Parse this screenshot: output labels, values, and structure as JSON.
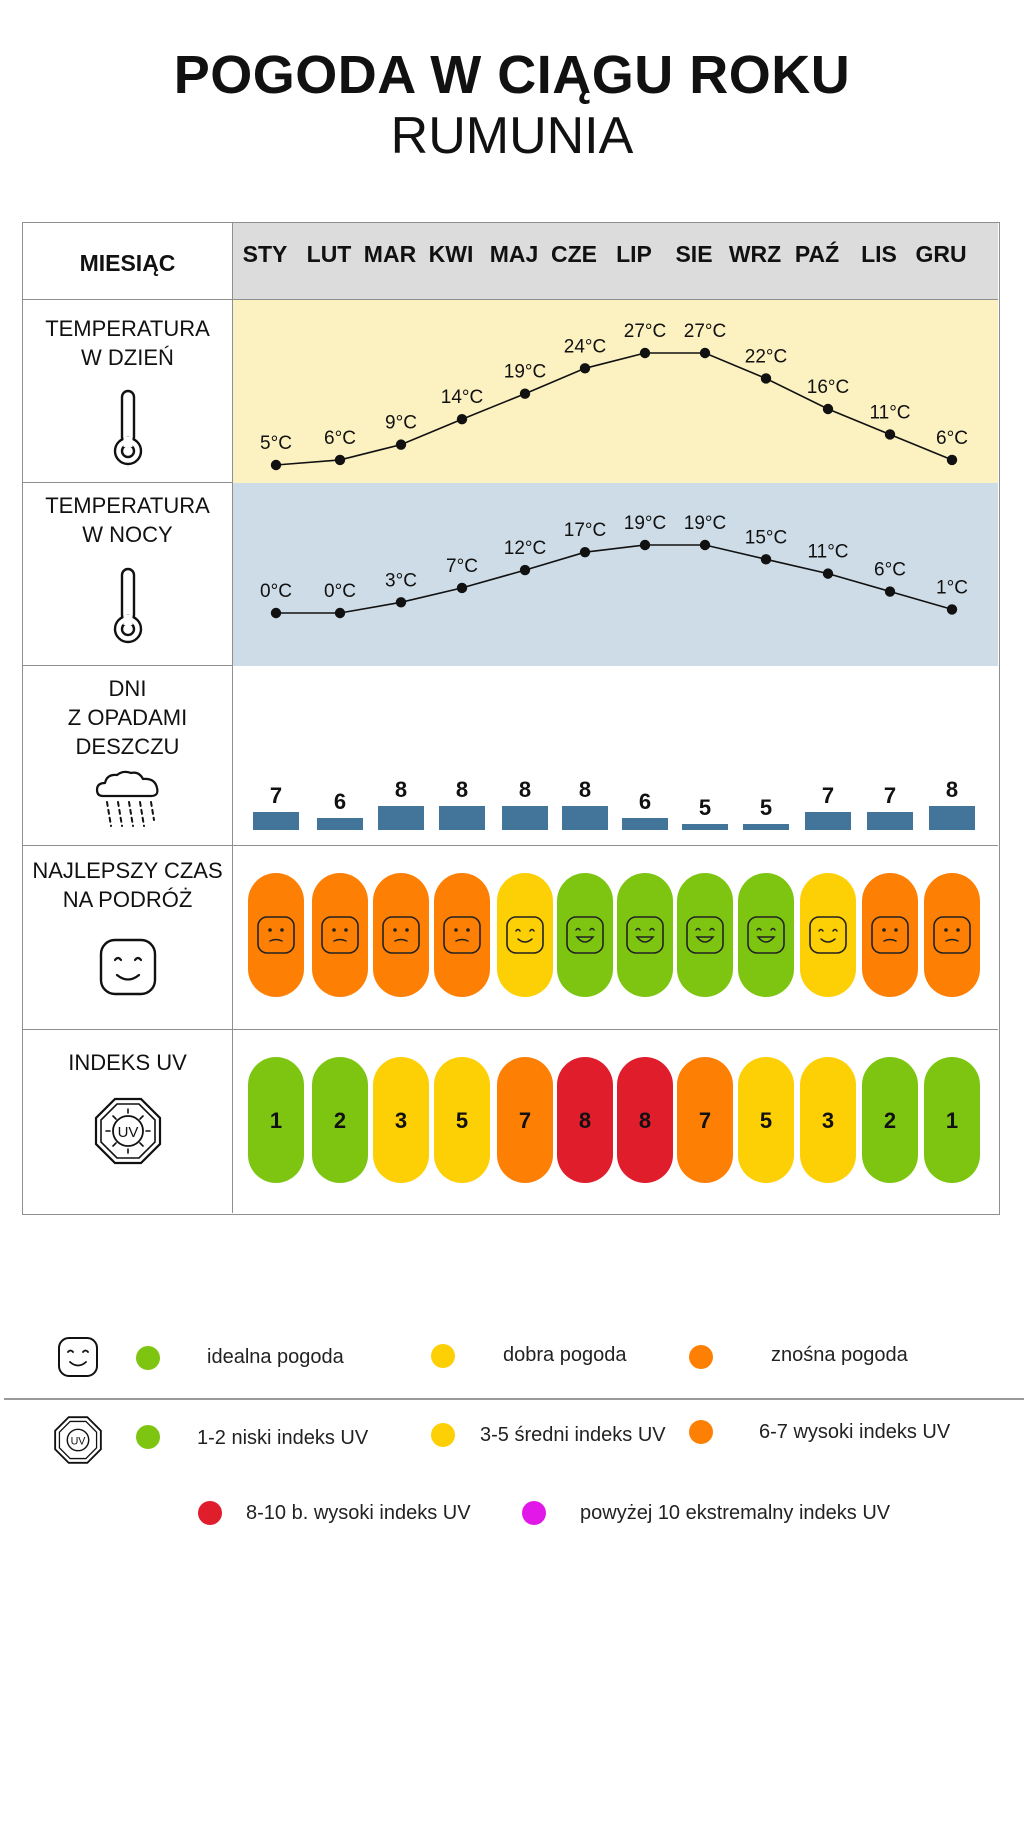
{
  "title": "POGODA W CIĄGU ROKU",
  "subtitle": "RUMUNIA",
  "header_label": "MIESIĄC",
  "months": [
    "STY",
    "LUT",
    "MAR",
    "KWI",
    "MAJ",
    "CZE",
    "LIP",
    "SIE",
    "WRZ",
    "PAŹ",
    "LIS",
    "GRU"
  ],
  "rows": {
    "day_temp_label": [
      "TEMPERATURA",
      "W DZIEŃ"
    ],
    "night_temp_label": [
      "TEMPERATURA",
      "W NOCY"
    ],
    "rain_label": [
      "DNI",
      "Z OPADAMI",
      "DESZCZU"
    ],
    "travel_label": [
      "NAJLEPSZY CZAS",
      "NA PODRÓŻ"
    ],
    "uv_label": "INDEKS UV"
  },
  "chart_data": {
    "type": "table",
    "temp_unit": "°C",
    "day_temperature": [
      5,
      6,
      9,
      14,
      19,
      24,
      27,
      27,
      22,
      16,
      11,
      6
    ],
    "night_temperature": [
      0,
      0,
      3,
      7,
      12,
      17,
      19,
      19,
      15,
      11,
      6,
      1
    ],
    "rain_days": [
      7,
      6,
      8,
      8,
      8,
      8,
      6,
      5,
      5,
      7,
      7,
      8
    ],
    "travel_rating": [
      "znośna",
      "znośna",
      "znośna",
      "znośna",
      "dobra",
      "idealna",
      "idealna",
      "idealna",
      "idealna",
      "dobra",
      "znośna",
      "znośna"
    ],
    "uv_index": [
      1,
      2,
      3,
      5,
      7,
      8,
      8,
      7,
      5,
      3,
      2,
      1
    ]
  },
  "colors": {
    "day_bg": "#fcf1c1",
    "night_bg": "#cddce6",
    "header_bg": "#dcdcdc",
    "rain_bar": "#437499",
    "idealna": "#7ec512",
    "dobra": "#fdcf05",
    "znośna": "#fd7f04",
    "uv_low": "#7ec512",
    "uv_mid": "#fdcf05",
    "uv_high": "#fd7f04",
    "uv_very_high": "#e01d2b",
    "uv_extreme": "#e218e8"
  },
  "legend": {
    "weather": {
      "ideal": "idealna pogoda",
      "good": "dobra pogoda",
      "tolerable": "znośna pogoda"
    },
    "uv": {
      "low": "1-2 niski indeks UV",
      "mid": "3-5 średni indeks UV",
      "high": "6-7 wysoki indeks UV",
      "very_high": "8-10 b. wysoki indeks UV",
      "extreme": "powyżej 10 ekstremalny indeks UV"
    },
    "uv_icon_text": "UV"
  }
}
